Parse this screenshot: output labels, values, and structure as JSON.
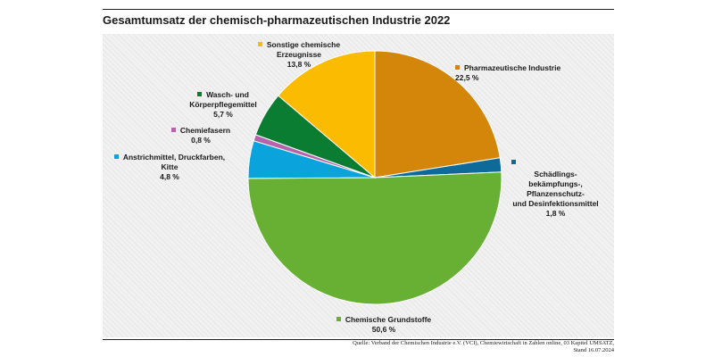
{
  "chart_data": {
    "type": "pie",
    "title": "Gesamtumsatz der chemisch-pharmazeutischen Industrie 2022",
    "slices": [
      {
        "name": "Pharmazeutische Industrie",
        "value": 22.5,
        "value_label": "22,5 %",
        "color": "#d4860b"
      },
      {
        "name": "Schädlings-\nbekämpfungs-,\nPflanzenschutz-\nund Desinfektionsmittel",
        "value": 1.8,
        "value_label": "1,8 %",
        "color": "#0e6a99"
      },
      {
        "name": "Chemische Grundstoffe",
        "value": 50.6,
        "value_label": "50,6 %",
        "color": "#67b034"
      },
      {
        "name": "Anstrichmittel, Druckfarben,\nKitte",
        "value": 4.8,
        "value_label": "4,8 %",
        "color": "#0ba3dc"
      },
      {
        "name": "Chemiefasern",
        "value": 0.8,
        "value_label": "0,8 %",
        "color": "#b463ad"
      },
      {
        "name": "Wasch- und\nKörperpflegemittel",
        "value": 5.7,
        "value_label": "5,7 %",
        "color": "#0b7d32"
      },
      {
        "name": "Sonstige chemische\nErzeugnisse",
        "value": 13.8,
        "value_label": "13,8 %",
        "color": "#fbbb00"
      }
    ]
  },
  "source": {
    "line1": "Quelle: Verband der Chemischen Industrie e.V. (VCI), Chemiewirtschaft in Zahlen online, 03 Kapitel UMSATZ,",
    "line2": "Stand 16.07.2024"
  }
}
